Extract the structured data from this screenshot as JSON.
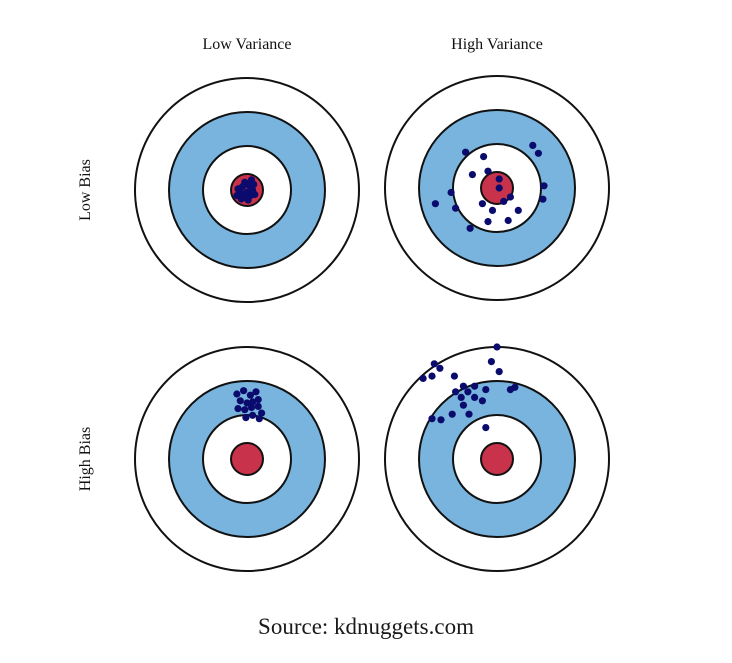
{
  "diagram": {
    "column_labels": [
      "Low Variance",
      "High Variance"
    ],
    "row_labels": [
      "Low Bias",
      "High Bias"
    ],
    "colors": {
      "outer_ring": "#ffffff",
      "middle_ring": "#78b4dd",
      "inner_ring": "#ffffff",
      "bullseye": "#c8324a",
      "outline": "#111111",
      "shot": "#0b0b6e"
    },
    "targets": [
      {
        "name": "low-bias-low-variance",
        "shots": [
          [
            -0.04,
            -0.03
          ],
          [
            0.02,
            -0.04
          ],
          [
            -0.06,
            0.02
          ],
          [
            0.0,
            0.02
          ],
          [
            0.05,
            0.0
          ],
          [
            -0.03,
            0.06
          ],
          [
            0.03,
            0.05
          ],
          [
            -0.08,
            -0.01
          ],
          [
            0.06,
            -0.05
          ],
          [
            -0.02,
            -0.07
          ],
          [
            0.07,
            0.04
          ],
          [
            -0.05,
            0.08
          ],
          [
            0.01,
            0.09
          ],
          [
            -0.09,
            0.05
          ],
          [
            0.04,
            -0.09
          ]
        ]
      },
      {
        "name": "low-bias-high-variance",
        "shots": [
          [
            -0.28,
            -0.32
          ],
          [
            -0.12,
            -0.28
          ],
          [
            0.32,
            -0.38
          ],
          [
            0.37,
            -0.31
          ],
          [
            -0.22,
            -0.12
          ],
          [
            -0.08,
            -0.15
          ],
          [
            0.02,
            -0.08
          ],
          [
            0.42,
            -0.02
          ],
          [
            0.41,
            0.1
          ],
          [
            -0.41,
            0.04
          ],
          [
            -0.55,
            0.14
          ],
          [
            -0.37,
            0.18
          ],
          [
            -0.13,
            0.14
          ],
          [
            -0.04,
            0.2
          ],
          [
            0.06,
            0.12
          ],
          [
            0.12,
            0.08
          ],
          [
            0.19,
            0.2
          ],
          [
            0.1,
            0.29
          ],
          [
            -0.08,
            0.3
          ],
          [
            -0.24,
            0.36
          ],
          [
            0.02,
            0.0
          ]
        ]
      },
      {
        "name": "high-bias-low-variance",
        "shots": [
          [
            -0.09,
            -0.58
          ],
          [
            -0.03,
            -0.61
          ],
          [
            0.03,
            -0.57
          ],
          [
            0.08,
            -0.6
          ],
          [
            -0.06,
            -0.52
          ],
          [
            0.0,
            -0.5
          ],
          [
            0.05,
            -0.51
          ],
          [
            0.1,
            -0.53
          ],
          [
            -0.08,
            -0.45
          ],
          [
            -0.02,
            -0.44
          ],
          [
            0.04,
            -0.46
          ],
          [
            0.1,
            -0.47
          ],
          [
            0.13,
            -0.41
          ],
          [
            0.05,
            -0.39
          ],
          [
            -0.01,
            -0.37
          ],
          [
            0.11,
            -0.36
          ]
        ]
      },
      {
        "name": "high-bias-high-variance",
        "shots": [
          [
            -0.56,
            -0.85
          ],
          [
            -0.51,
            -0.81
          ],
          [
            -0.66,
            -0.72
          ],
          [
            -0.58,
            -0.74
          ],
          [
            -0.38,
            -0.74
          ],
          [
            -0.3,
            -0.65
          ],
          [
            -0.37,
            -0.6
          ],
          [
            -0.32,
            -0.55
          ],
          [
            -0.26,
            -0.6
          ],
          [
            -0.2,
            -0.65
          ],
          [
            -0.1,
            -0.62
          ],
          [
            -0.2,
            -0.55
          ],
          [
            -0.3,
            -0.48
          ],
          [
            -0.4,
            -0.4
          ],
          [
            -0.5,
            -0.35
          ],
          [
            -0.58,
            -0.36
          ],
          [
            -0.25,
            -0.4
          ],
          [
            -0.1,
            -0.28
          ],
          [
            0.0,
            -1.0
          ],
          [
            -0.05,
            -0.87
          ],
          [
            0.02,
            -0.78
          ],
          [
            0.12,
            -0.62
          ],
          [
            0.16,
            -0.64
          ],
          [
            -0.13,
            -0.52
          ]
        ]
      }
    ]
  },
  "source_text": "Source: kdnuggets.com"
}
